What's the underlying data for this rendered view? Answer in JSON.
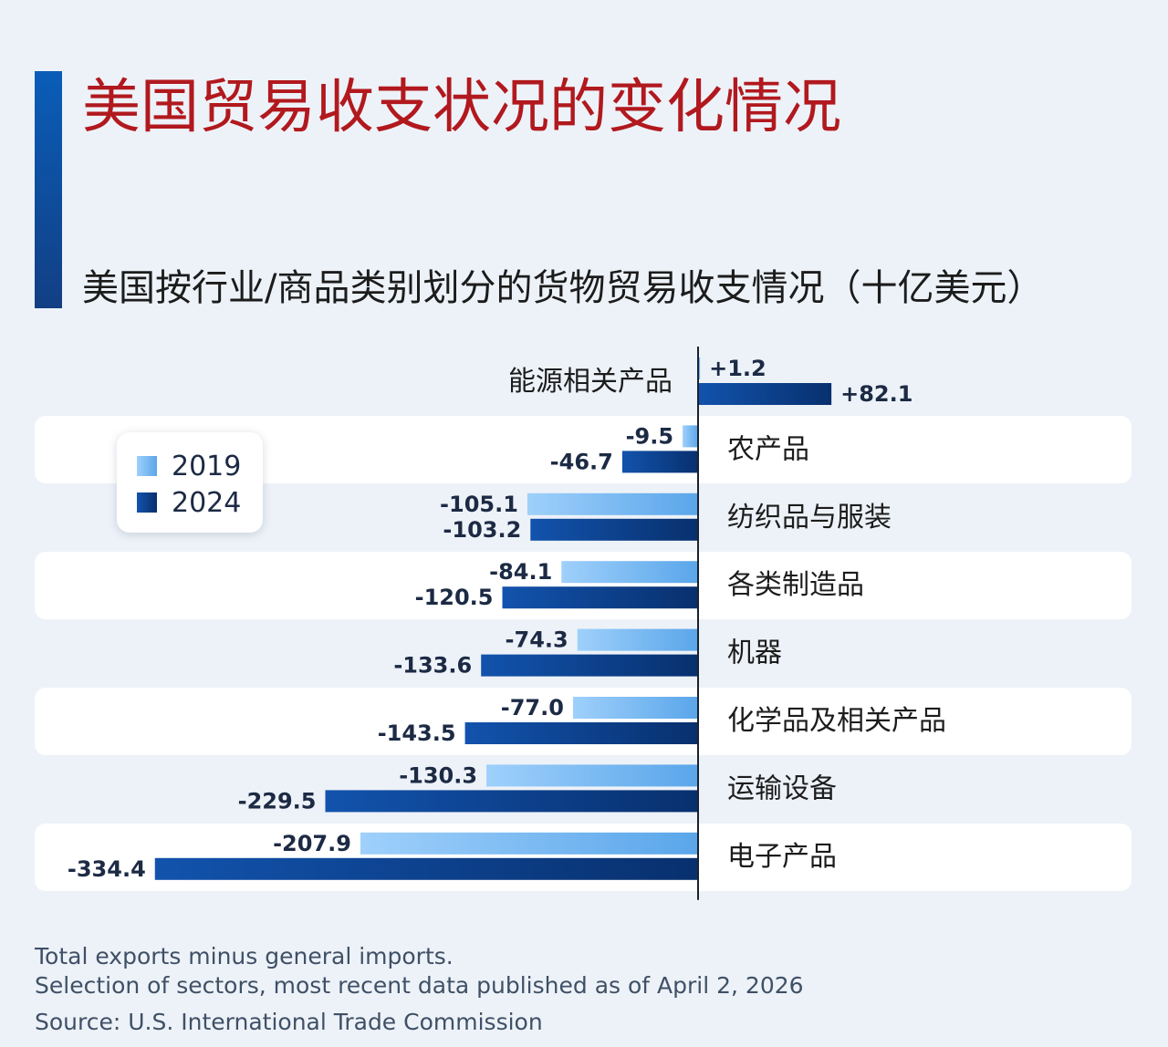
{
  "header": {
    "title": "美国贸易收支状况的变化情况",
    "subtitle": "美国按行业/商品类别划分的货物贸易收支情况（十亿美元）"
  },
  "legend": {
    "items": [
      {
        "label": "2019",
        "color": "#74b8f2"
      },
      {
        "label": "2024",
        "color": "#0b3f8f"
      }
    ]
  },
  "chart_data": {
    "type": "bar",
    "orientation": "horizontal",
    "categories": [
      "能源相关产品",
      "农产品",
      "纺织品与服装",
      "各类制造品",
      "机器",
      "化学品及相关产品",
      "运输设备",
      "电子产品"
    ],
    "series": [
      {
        "name": "2019",
        "values": [
          1.2,
          -9.5,
          -105.1,
          -84.1,
          -74.3,
          -77.0,
          -130.3,
          -207.9
        ],
        "labels": [
          "+1.2",
          "-9.5",
          "-105.1",
          "-84.1",
          "-74.3",
          "-77.0",
          "-130.3",
          "-207.9"
        ]
      },
      {
        "name": "2024",
        "values": [
          82.1,
          -46.7,
          -103.2,
          -120.5,
          -133.6,
          -143.5,
          -229.5,
          -334.4
        ],
        "labels": [
          "+82.1",
          "-46.7",
          "-103.2",
          "-120.5",
          "-133.6",
          "-143.5",
          "-229.5",
          "-334.4"
        ]
      }
    ],
    "colors": {
      "2019": "#74b8f2",
      "2024": "#0b3f8f"
    }
  },
  "footer": {
    "note1": "Total exports minus general imports.",
    "note2": "Selection of sectors, most recent data published as of April 2, 2026",
    "source": "Source: U.S. International Trade Commission"
  }
}
